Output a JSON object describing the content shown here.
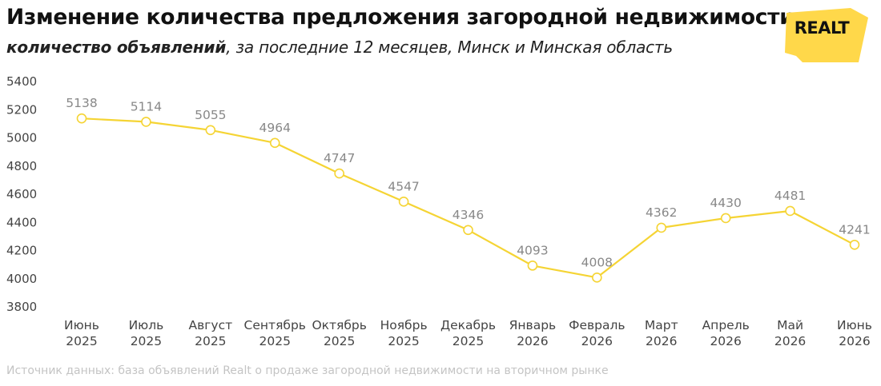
{
  "header": {
    "title": "Изменение количества предложения загородной недвижимости",
    "subtitle_bold": "количество объявлений",
    "subtitle_rest": ", за последние 12 месяцев, Минск и Минская область"
  },
  "logo": {
    "text": "REALT",
    "color": "#ffd84a"
  },
  "source": "Источник данных: база объявлений Realt о продаже загородной недвижимости на вторичном рынке",
  "colors": {
    "line": "#f5d434",
    "marker_fill": "#ffffff",
    "label": "#888888",
    "axis_text": "#444444"
  },
  "chart_data": {
    "type": "line",
    "categories": [
      [
        "Июнь",
        "2025"
      ],
      [
        "Июль",
        "2025"
      ],
      [
        "Август",
        "2025"
      ],
      [
        "Сентябрь",
        "2025"
      ],
      [
        "Октябрь",
        "2025"
      ],
      [
        "Ноябрь",
        "2025"
      ],
      [
        "Декабрь",
        "2025"
      ],
      [
        "Январь",
        "2026"
      ],
      [
        "Февраль",
        "2026"
      ],
      [
        "Март",
        "2026"
      ],
      [
        "Апрель",
        "2026"
      ],
      [
        "Май",
        "2026"
      ],
      [
        "Июнь",
        "2026"
      ]
    ],
    "series": [
      {
        "values": [
          5138,
          5114,
          5055,
          4964,
          4747,
          4547,
          4346,
          4093,
          4008,
          4362,
          4430,
          4481,
          4241
        ]
      }
    ],
    "ylim": [
      3800,
      5400
    ],
    "yticks": [
      3800,
      4000,
      4200,
      4400,
      4600,
      4800,
      5000,
      5200,
      5400
    ],
    "grid": false,
    "legend": "none"
  }
}
